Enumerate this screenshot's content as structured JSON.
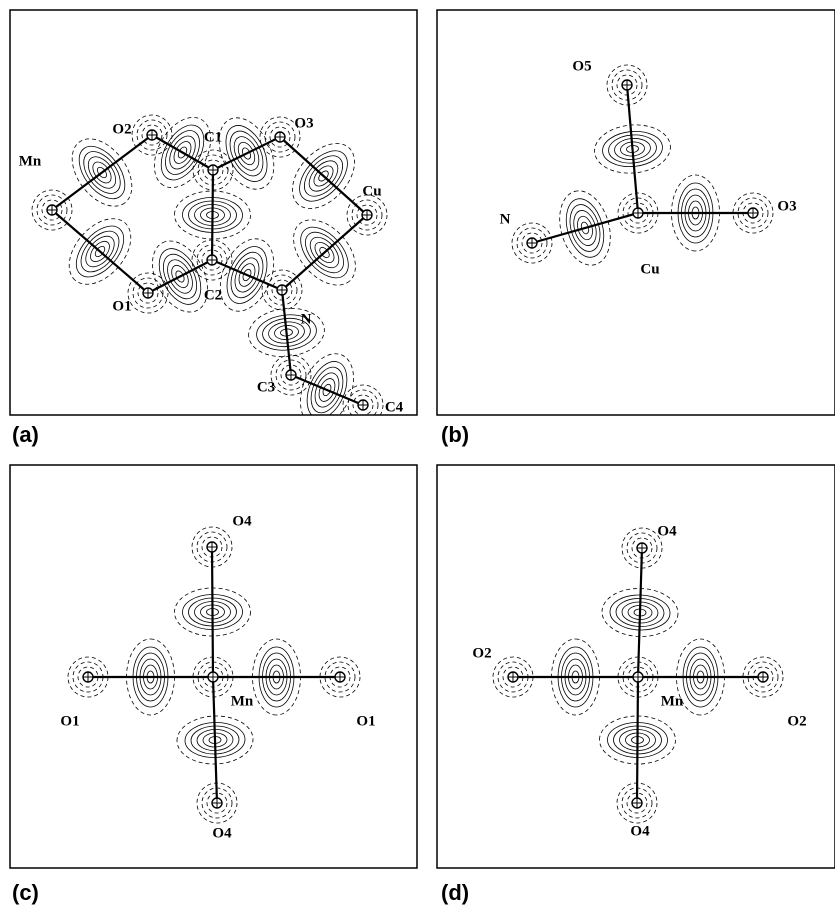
{
  "panels": [
    {
      "label": "(a)",
      "atoms": [
        "Mn",
        "O2",
        "C1",
        "O3",
        "Cu",
        "O1",
        "C2",
        "N",
        "C3",
        "C4"
      ]
    },
    {
      "label": "(b)",
      "atoms": [
        "O5",
        "Cu",
        "O3",
        "N"
      ]
    },
    {
      "label": "(c)",
      "atoms": [
        "O4",
        "Mn",
        "O1",
        "O1",
        "O4"
      ]
    },
    {
      "label": "(d)",
      "atoms": [
        "O4",
        "O2",
        "Mn",
        "O2",
        "O4"
      ]
    }
  ]
}
